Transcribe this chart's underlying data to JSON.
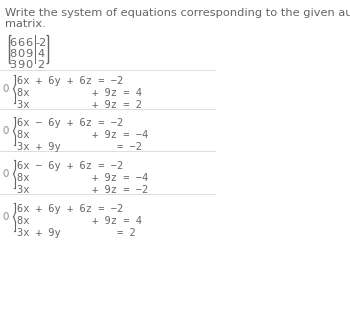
{
  "title_line1": "Write the system of equations corresponding to the given augmented",
  "title_line2": "matrix.",
  "matrix_rows": [
    [
      "6",
      "6",
      "6",
      "-2"
    ],
    [
      "8",
      "0",
      "9",
      "4"
    ],
    [
      "3",
      "9",
      "0",
      "2"
    ]
  ],
  "options": [
    {
      "line1": "6x + 6y + 6z = −2",
      "line2": "8x          + 9z = 4",
      "line3": "3x          + 9z = 2"
    },
    {
      "line1": "6x − 6y + 6z = −2",
      "line2": "8x          + 9z = −4",
      "line3": "3x + 9y         = −2"
    },
    {
      "line1": "6x − 6y + 6z = −2",
      "line2": "8x          + 9z = −4",
      "line3": "3x          + 9z = −2"
    },
    {
      "line1": "6x + 6y + 6z = −2",
      "line2": "8x          + 9z = 4",
      "line3": "3x + 9y         = 2"
    }
  ],
  "bg_color": "#ffffff",
  "text_color": "#666666",
  "title_fontsize": 8.2,
  "option_fontsize": 7.5,
  "matrix_fontsize": 8.2,
  "radio_color": "#aaaaaa",
  "sep_color": "#dddddd"
}
